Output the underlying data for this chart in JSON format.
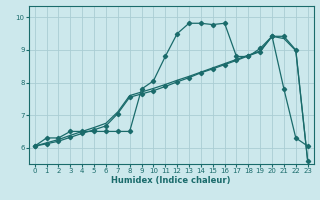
{
  "title": "",
  "xlabel": "Humidex (Indice chaleur)",
  "bg_color": "#cce8ec",
  "grid_color": "#aacdd4",
  "line_color": "#1a6b6b",
  "xlim": [
    -0.5,
    23.5
  ],
  "ylim": [
    5.5,
    10.35
  ],
  "xticks": [
    0,
    1,
    2,
    3,
    4,
    5,
    6,
    7,
    8,
    9,
    10,
    11,
    12,
    13,
    14,
    15,
    16,
    17,
    18,
    19,
    20,
    21,
    22,
    23
  ],
  "yticks": [
    6,
    7,
    8,
    9,
    10
  ],
  "s1_x": [
    0,
    1,
    2,
    3,
    4,
    5,
    6,
    7,
    8,
    9,
    10,
    11,
    12,
    13,
    14,
    15,
    16,
    17,
    18,
    19,
    20,
    21,
    22,
    23
  ],
  "s1_y": [
    6.05,
    6.3,
    6.3,
    6.5,
    6.5,
    6.5,
    6.5,
    6.5,
    6.5,
    7.8,
    8.05,
    8.8,
    9.5,
    9.82,
    9.82,
    9.78,
    9.82,
    8.8,
    8.8,
    9.05,
    9.42,
    7.8,
    6.3,
    6.05
  ],
  "s2_x": [
    0,
    1,
    2,
    3,
    4,
    5,
    6,
    7,
    8,
    9,
    10,
    11,
    12,
    13,
    14,
    15,
    16,
    17,
    18,
    19,
    20,
    21,
    22,
    23
  ],
  "s2_y": [
    6.05,
    6.12,
    6.2,
    6.32,
    6.44,
    6.55,
    6.67,
    7.05,
    7.55,
    7.65,
    7.75,
    7.88,
    8.02,
    8.15,
    8.3,
    8.42,
    8.55,
    8.68,
    8.82,
    8.95,
    9.42,
    9.42,
    9.0,
    5.6
  ],
  "s3_x": [
    0,
    1,
    2,
    3,
    4,
    5,
    6,
    7,
    8,
    9,
    10,
    11,
    12,
    13,
    14,
    15,
    16,
    17,
    18,
    19,
    20,
    21,
    22,
    23
  ],
  "s3_y": [
    6.05,
    6.15,
    6.25,
    6.38,
    6.5,
    6.62,
    6.75,
    7.1,
    7.6,
    7.71,
    7.82,
    7.94,
    8.07,
    8.19,
    8.32,
    8.45,
    8.58,
    8.71,
    8.84,
    8.97,
    9.42,
    9.35,
    8.98,
    5.6
  ]
}
